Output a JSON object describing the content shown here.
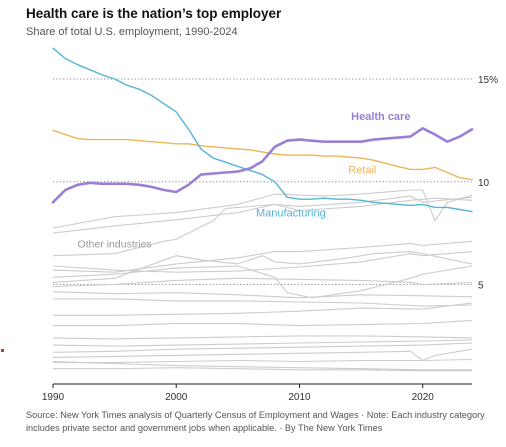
{
  "header": {
    "title": "Health care is the nation’s top employer",
    "subtitle": "Share of total U.S. employment, 1990-2024"
  },
  "source_note": "Source: New York Times analysis of Quarterly Census of Employment and Wages  ·  Note: Each industry category includes private sector and government jobs when applicable.  ·  By The New York Times",
  "chart_data": {
    "type": "line",
    "title": "Health care is the nation’s top employer",
    "subtitle": "Share of total U.S. employment, 1990-2024",
    "x_ticks": [
      "1990",
      "2000",
      "2010",
      "2020"
    ],
    "y_ticks": [
      {
        "value": 15,
        "label": "15%"
      },
      {
        "value": 10,
        "label": "10"
      },
      {
        "value": 5,
        "label": "5"
      }
    ],
    "xlim": [
      1990,
      2024
    ],
    "ylim": [
      0.4,
      16.9
    ],
    "grid": "dotted horizontal lines at y ticks",
    "colors": {
      "health_care": "#9b7fd6",
      "retail": "#eeb559",
      "manufacturing": "#56b4d6",
      "other": "#cccccc",
      "axis": "#222222"
    },
    "highlighted_series": [
      {
        "name": "Health care",
        "color": "#9b7fd6",
        "label_year": 2016.6,
        "label_value": 13.0,
        "points": [
          [
            1990,
            9.0
          ],
          [
            1991,
            9.6
          ],
          [
            1992,
            9.85
          ],
          [
            1993,
            9.95
          ],
          [
            1994,
            9.9
          ],
          [
            1995,
            9.9
          ],
          [
            1996,
            9.9
          ],
          [
            1997,
            9.85
          ],
          [
            1998,
            9.75
          ],
          [
            1999,
            9.6
          ],
          [
            2000,
            9.5
          ],
          [
            2001,
            9.85
          ],
          [
            2002,
            10.35
          ],
          [
            2003,
            10.4
          ],
          [
            2004,
            10.45
          ],
          [
            2005,
            10.5
          ],
          [
            2006,
            10.65
          ],
          [
            2007,
            11.0
          ],
          [
            2008,
            11.7
          ],
          [
            2009,
            12.0
          ],
          [
            2010,
            12.05
          ],
          [
            2011,
            12.0
          ],
          [
            2012,
            11.95
          ],
          [
            2013,
            11.95
          ],
          [
            2014,
            11.95
          ],
          [
            2015,
            11.95
          ],
          [
            2016,
            12.05
          ],
          [
            2017,
            12.1
          ],
          [
            2018,
            12.15
          ],
          [
            2019,
            12.2
          ],
          [
            2020,
            12.6
          ],
          [
            2021,
            12.3
          ],
          [
            2022,
            11.95
          ],
          [
            2023,
            12.2
          ],
          [
            2024,
            12.55
          ]
        ]
      },
      {
        "name": "Retail",
        "color": "#eeb559",
        "label_year": 2015.1,
        "label_value": 10.4,
        "points": [
          [
            1990,
            12.5
          ],
          [
            1991,
            12.3
          ],
          [
            1992,
            12.1
          ],
          [
            1993,
            12.05
          ],
          [
            1994,
            12.05
          ],
          [
            1995,
            12.05
          ],
          [
            1996,
            12.05
          ],
          [
            1997,
            12.0
          ],
          [
            1998,
            11.95
          ],
          [
            1999,
            11.9
          ],
          [
            2000,
            11.85
          ],
          [
            2001,
            11.85
          ],
          [
            2002,
            11.75
          ],
          [
            2003,
            11.7
          ],
          [
            2004,
            11.65
          ],
          [
            2005,
            11.6
          ],
          [
            2006,
            11.55
          ],
          [
            2007,
            11.45
          ],
          [
            2008,
            11.35
          ],
          [
            2009,
            11.3
          ],
          [
            2010,
            11.3
          ],
          [
            2011,
            11.3
          ],
          [
            2012,
            11.25
          ],
          [
            2013,
            11.25
          ],
          [
            2014,
            11.2
          ],
          [
            2015,
            11.15
          ],
          [
            2016,
            11.05
          ],
          [
            2017,
            10.9
          ],
          [
            2018,
            10.75
          ],
          [
            2019,
            10.6
          ],
          [
            2020,
            10.6
          ],
          [
            2021,
            10.7
          ],
          [
            2022,
            10.45
          ],
          [
            2023,
            10.2
          ],
          [
            2024,
            10.1
          ]
        ]
      },
      {
        "name": "Manufacturing",
        "color": "#56b4d6",
        "label_year": 2009.3,
        "label_value": 8.3,
        "points": [
          [
            1990,
            16.5
          ],
          [
            1991,
            16.0
          ],
          [
            1992,
            15.7
          ],
          [
            1993,
            15.45
          ],
          [
            1994,
            15.2
          ],
          [
            1995,
            15.0
          ],
          [
            1996,
            14.7
          ],
          [
            1997,
            14.5
          ],
          [
            1998,
            14.2
          ],
          [
            1999,
            13.8
          ],
          [
            2000,
            13.4
          ],
          [
            2001,
            12.55
          ],
          [
            2002,
            11.6
          ],
          [
            2003,
            11.15
          ],
          [
            2004,
            10.95
          ],
          [
            2005,
            10.75
          ],
          [
            2006,
            10.55
          ],
          [
            2007,
            10.35
          ],
          [
            2008,
            10.0
          ],
          [
            2009,
            9.25
          ],
          [
            2010,
            9.15
          ],
          [
            2011,
            9.15
          ],
          [
            2012,
            9.2
          ],
          [
            2013,
            9.15
          ],
          [
            2014,
            9.15
          ],
          [
            2015,
            9.1
          ],
          [
            2016,
            9.0
          ],
          [
            2017,
            8.95
          ],
          [
            2018,
            8.9
          ],
          [
            2019,
            8.85
          ],
          [
            2020,
            8.9
          ],
          [
            2021,
            8.75
          ],
          [
            2022,
            8.75
          ],
          [
            2023,
            8.65
          ],
          [
            2024,
            8.55
          ]
        ]
      }
    ],
    "other_industries": {
      "label": "Other industries",
      "label_year": 1995,
      "label_value": 6.8,
      "color": "#cccccc",
      "series": [
        [
          [
            1990,
            7.75
          ],
          [
            1995,
            8.3
          ],
          [
            2000,
            8.5
          ],
          [
            2005,
            8.9
          ],
          [
            2008,
            9.4
          ],
          [
            2012,
            9.3
          ],
          [
            2015,
            9.4
          ],
          [
            2019,
            9.6
          ],
          [
            2020,
            9.6
          ],
          [
            2021,
            8.1
          ],
          [
            2022,
            9.0
          ],
          [
            2024,
            9.35
          ]
        ],
        [
          [
            1990,
            7.5
          ],
          [
            1995,
            7.85
          ],
          [
            2000,
            8.15
          ],
          [
            2005,
            8.5
          ],
          [
            2008,
            8.9
          ],
          [
            2010,
            8.8
          ],
          [
            2015,
            9.0
          ],
          [
            2019,
            9.3
          ],
          [
            2020,
            9.0
          ],
          [
            2024,
            9.25
          ]
        ],
        [
          [
            1990,
            6.4
          ],
          [
            1995,
            6.5
          ],
          [
            1999,
            7.1
          ],
          [
            2000,
            7.2
          ],
          [
            2003,
            8.1
          ],
          [
            2004,
            8.7
          ],
          [
            2008,
            8.9
          ],
          [
            2010,
            8.6
          ],
          [
            2015,
            8.8
          ],
          [
            2019,
            9.1
          ],
          [
            2021,
            9.2
          ],
          [
            2024,
            9.1
          ]
        ],
        [
          [
            1990,
            5.7
          ],
          [
            1995,
            5.6
          ],
          [
            2000,
            6.0
          ],
          [
            2005,
            6.3
          ],
          [
            2008,
            6.6
          ],
          [
            2010,
            6.6
          ],
          [
            2015,
            6.8
          ],
          [
            2019,
            7.0
          ],
          [
            2020,
            6.9
          ],
          [
            2024,
            7.1
          ]
        ],
        [
          [
            1990,
            5.9
          ],
          [
            1995,
            5.7
          ],
          [
            2000,
            5.6
          ],
          [
            2005,
            5.65
          ],
          [
            2010,
            5.85
          ],
          [
            2015,
            6.1
          ],
          [
            2019,
            6.5
          ],
          [
            2020,
            6.4
          ],
          [
            2024,
            6.6
          ]
        ],
        [
          [
            1990,
            5.1
          ],
          [
            1995,
            5.3
          ],
          [
            2000,
            6.4
          ],
          [
            2002,
            6.2
          ],
          [
            2005,
            6.0
          ],
          [
            2007,
            6.4
          ],
          [
            2008,
            6.1
          ],
          [
            2010,
            6.0
          ],
          [
            2014,
            6.3
          ],
          [
            2016,
            6.5
          ],
          [
            2019,
            6.6
          ],
          [
            2020,
            6.5
          ],
          [
            2024,
            6.0
          ]
        ],
        [
          [
            1990,
            5.35
          ],
          [
            1995,
            5.5
          ],
          [
            2000,
            5.8
          ],
          [
            2005,
            5.9
          ],
          [
            2008,
            5.35
          ],
          [
            2009,
            4.6
          ],
          [
            2011,
            4.35
          ],
          [
            2015,
            4.7
          ],
          [
            2019,
            5.3
          ],
          [
            2020,
            5.5
          ],
          [
            2024,
            5.9
          ]
        ],
        [
          [
            1990,
            4.9
          ],
          [
            1995,
            5.0
          ],
          [
            2000,
            5.2
          ],
          [
            2005,
            5.3
          ],
          [
            2010,
            5.25
          ],
          [
            2015,
            5.2
          ],
          [
            2019,
            5.1
          ],
          [
            2020,
            5.0
          ],
          [
            2024,
            5.1
          ]
        ],
        [
          [
            1990,
            4.65
          ],
          [
            1995,
            4.55
          ],
          [
            2000,
            4.6
          ],
          [
            2005,
            4.5
          ],
          [
            2010,
            4.35
          ],
          [
            2015,
            4.5
          ],
          [
            2020,
            4.45
          ],
          [
            2024,
            4.4
          ]
        ],
        [
          [
            1990,
            4.3
          ],
          [
            1995,
            4.3
          ],
          [
            2000,
            4.2
          ],
          [
            2005,
            4.2
          ],
          [
            2010,
            4.15
          ],
          [
            2015,
            4.1
          ],
          [
            2020,
            3.95
          ],
          [
            2024,
            4.0
          ]
        ],
        [
          [
            1990,
            3.5
          ],
          [
            1995,
            3.5
          ],
          [
            2000,
            3.55
          ],
          [
            2005,
            3.6
          ],
          [
            2010,
            3.7
          ],
          [
            2015,
            3.85
          ],
          [
            2020,
            3.8
          ],
          [
            2024,
            4.1
          ]
        ],
        [
          [
            1990,
            3.0
          ],
          [
            1995,
            3.0
          ],
          [
            2000,
            3.1
          ],
          [
            2005,
            3.1
          ],
          [
            2010,
            3.0
          ],
          [
            2015,
            3.05
          ],
          [
            2020,
            3.1
          ],
          [
            2024,
            3.25
          ]
        ],
        [
          [
            1990,
            2.4
          ],
          [
            1995,
            2.35
          ],
          [
            2000,
            2.4
          ],
          [
            2005,
            2.45
          ],
          [
            2010,
            2.5
          ],
          [
            2015,
            2.5
          ],
          [
            2020,
            2.45
          ],
          [
            2024,
            2.4
          ]
        ],
        [
          [
            1990,
            2.05
          ],
          [
            1995,
            2.0
          ],
          [
            2000,
            2.05
          ],
          [
            2005,
            2.1
          ],
          [
            2010,
            2.15
          ],
          [
            2015,
            2.2
          ],
          [
            2020,
            2.25
          ],
          [
            2024,
            2.3
          ]
        ],
        [
          [
            1990,
            1.7
          ],
          [
            1995,
            1.75
          ],
          [
            2000,
            1.85
          ],
          [
            2005,
            1.9
          ],
          [
            2010,
            1.95
          ],
          [
            2015,
            2.0
          ],
          [
            2020,
            2.05
          ],
          [
            2024,
            2.15
          ]
        ],
        [
          [
            1990,
            1.45
          ],
          [
            1995,
            1.5
          ],
          [
            2000,
            1.55
          ],
          [
            2005,
            1.6
          ],
          [
            2010,
            1.65
          ],
          [
            2015,
            1.7
          ],
          [
            2019,
            1.75
          ],
          [
            2020,
            1.3
          ],
          [
            2021,
            1.55
          ],
          [
            2024,
            1.85
          ]
        ],
        [
          [
            1990,
            1.2
          ],
          [
            1995,
            1.2
          ],
          [
            2000,
            1.25
          ],
          [
            2005,
            1.3
          ],
          [
            2010,
            1.25
          ],
          [
            2015,
            1.3
          ],
          [
            2020,
            1.3
          ],
          [
            2024,
            1.35
          ]
        ],
        [
          [
            1990,
            0.9
          ],
          [
            1995,
            0.9
          ],
          [
            2000,
            0.95
          ],
          [
            2005,
            0.9
          ],
          [
            2010,
            0.85
          ],
          [
            2015,
            0.85
          ],
          [
            2020,
            0.8
          ],
          [
            2024,
            0.8
          ]
        ],
        [
          [
            1990,
            1.25
          ],
          [
            1995,
            1.15
          ],
          [
            2000,
            1.05
          ],
          [
            2005,
            1.0
          ],
          [
            2010,
            0.95
          ],
          [
            2015,
            0.9
          ],
          [
            2020,
            0.85
          ],
          [
            2024,
            0.85
          ]
        ]
      ]
    }
  }
}
